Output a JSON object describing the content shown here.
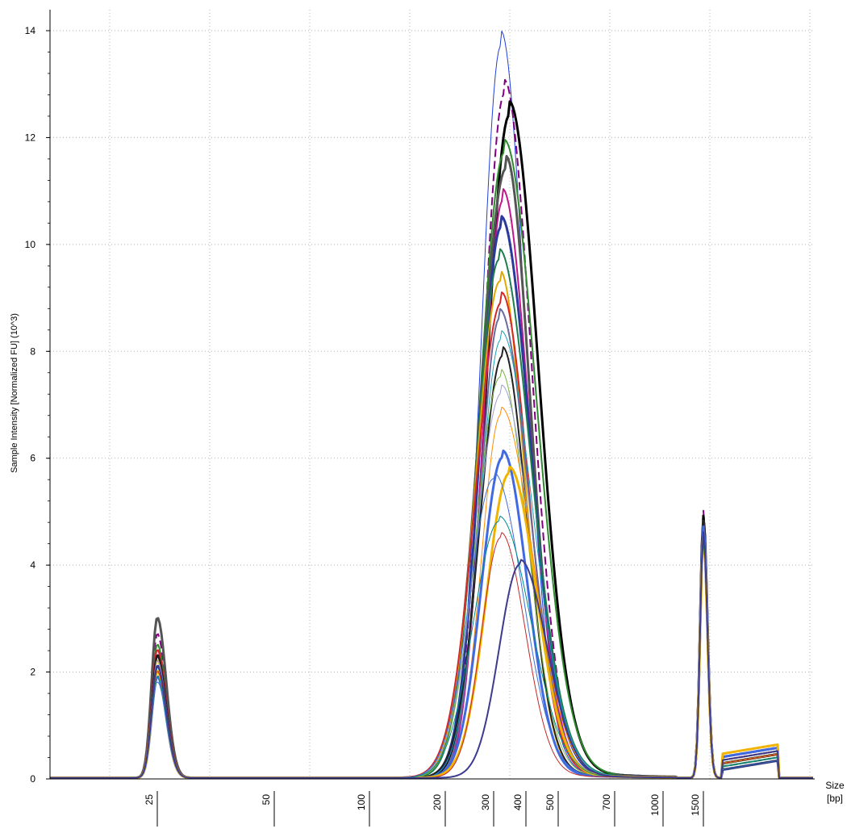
{
  "chart_data": {
    "type": "line",
    "title": "",
    "ylabel": "Sample Intensity [Normalized FU] (10^3)",
    "xlabel": "Size\n[bp]",
    "xlabel_lines": [
      "Size",
      "[bp]"
    ],
    "ylim": [
      0,
      14.5
    ],
    "yticks": [
      0,
      2,
      4,
      6,
      8,
      10,
      12,
      14
    ],
    "grid": true,
    "legend": "none",
    "x_tick_labels": [
      "25",
      "50",
      "100",
      "200",
      "300",
      "400",
      "500",
      "700",
      "1000",
      "1500"
    ],
    "x_tick_bp": [
      25,
      50,
      100,
      200,
      300,
      400,
      500,
      700,
      1000,
      1500
    ],
    "peaks_note_bp": {
      "lower_marker": 25,
      "main_peak": 320,
      "upper_marker": 1500
    },
    "series": [
      {
        "color": "#1f3fd6",
        "width": 1,
        "peaks": [
          [
            25,
            2.2
          ],
          [
            320,
            13.7
          ],
          [
            1500,
            4.8
          ]
        ]
      },
      {
        "color": "#800080",
        "width": 2,
        "dash": true,
        "peaks": [
          [
            25,
            2.7
          ],
          [
            330,
            12.8
          ],
          [
            1500,
            5.0
          ]
        ]
      },
      {
        "color": "#000000",
        "width": 3,
        "peaks": [
          [
            25,
            2.3
          ],
          [
            345,
            12.4
          ],
          [
            1500,
            4.9
          ]
        ]
      },
      {
        "color": "#2e8b2e",
        "width": 2,
        "peaks": [
          [
            25,
            2.5
          ],
          [
            330,
            11.7
          ],
          [
            1500,
            4.7
          ]
        ]
      },
      {
        "color": "#555555",
        "width": 3,
        "peaks": [
          [
            25,
            3.0
          ],
          [
            335,
            11.4
          ],
          [
            1500,
            4.8
          ]
        ]
      },
      {
        "color": "#c0188c",
        "width": 2,
        "peaks": [
          [
            25,
            2.4
          ],
          [
            325,
            10.8
          ],
          [
            1500,
            4.6
          ]
        ]
      },
      {
        "color": "#2a3a9c",
        "width": 3,
        "peaks": [
          [
            25,
            2.1
          ],
          [
            320,
            10.3
          ],
          [
            1500,
            4.7
          ]
        ]
      },
      {
        "color": "#1e7d4f",
        "width": 2,
        "peaks": [
          [
            25,
            2.0
          ],
          [
            315,
            9.7
          ],
          [
            1500,
            4.5
          ]
        ]
      },
      {
        "color": "#e0a800",
        "width": 2,
        "peaks": [
          [
            25,
            2.2
          ],
          [
            318,
            9.3
          ],
          [
            1500,
            4.6
          ]
        ]
      },
      {
        "color": "#d62728",
        "width": 2,
        "peaks": [
          [
            25,
            2.4
          ],
          [
            322,
            8.9
          ],
          [
            1500,
            4.7
          ]
        ]
      },
      {
        "color": "#6b6b9e",
        "width": 2,
        "peaks": [
          [
            25,
            1.9
          ],
          [
            316,
            8.6
          ],
          [
            1500,
            4.5
          ]
        ]
      },
      {
        "color": "#17a2b8",
        "width": 1,
        "peaks": [
          [
            25,
            2.0
          ],
          [
            320,
            8.2
          ],
          [
            1500,
            4.6
          ]
        ]
      },
      {
        "color": "#222222",
        "width": 2,
        "peaks": [
          [
            25,
            2.3
          ],
          [
            325,
            7.9
          ],
          [
            1500,
            4.8
          ]
        ]
      },
      {
        "color": "#7cb342",
        "width": 1,
        "peaks": [
          [
            25,
            2.1
          ],
          [
            318,
            7.5
          ],
          [
            1500,
            4.4
          ]
        ]
      },
      {
        "color": "#9e9ecf",
        "width": 1,
        "peaks": [
          [
            25,
            2.2
          ],
          [
            322,
            7.2
          ],
          [
            1500,
            4.5
          ]
        ]
      },
      {
        "color": "#ff8c00",
        "width": 1,
        "peaks": [
          [
            25,
            2.0
          ],
          [
            320,
            6.8
          ],
          [
            1500,
            4.6
          ]
        ]
      },
      {
        "color": "#4169e1",
        "width": 3,
        "peaks": [
          [
            25,
            1.9
          ],
          [
            325,
            6.0
          ],
          [
            1500,
            4.7
          ]
        ]
      },
      {
        "color": "#f0b400",
        "width": 3,
        "peaks": [
          [
            25,
            2.0
          ],
          [
            345,
            5.7
          ],
          [
            1500,
            4.5
          ]
        ]
      },
      {
        "color": "#3f6fd6",
        "width": 1,
        "peaks": [
          [
            25,
            1.8
          ],
          [
            300,
            5.6
          ],
          [
            1500,
            4.6
          ]
        ]
      },
      {
        "color": "#008b8b",
        "width": 1,
        "peaks": [
          [
            25,
            1.9
          ],
          [
            315,
            4.8
          ],
          [
            1500,
            4.4
          ]
        ]
      },
      {
        "color": "#c62828",
        "width": 1,
        "peaks": [
          [
            25,
            2.0
          ],
          [
            320,
            4.5
          ],
          [
            1500,
            4.5
          ]
        ]
      },
      {
        "color": "#3b3b8f",
        "width": 2,
        "peaks": [
          [
            25,
            2.1
          ],
          [
            380,
            4.0
          ],
          [
            1500,
            4.6
          ]
        ]
      }
    ]
  }
}
